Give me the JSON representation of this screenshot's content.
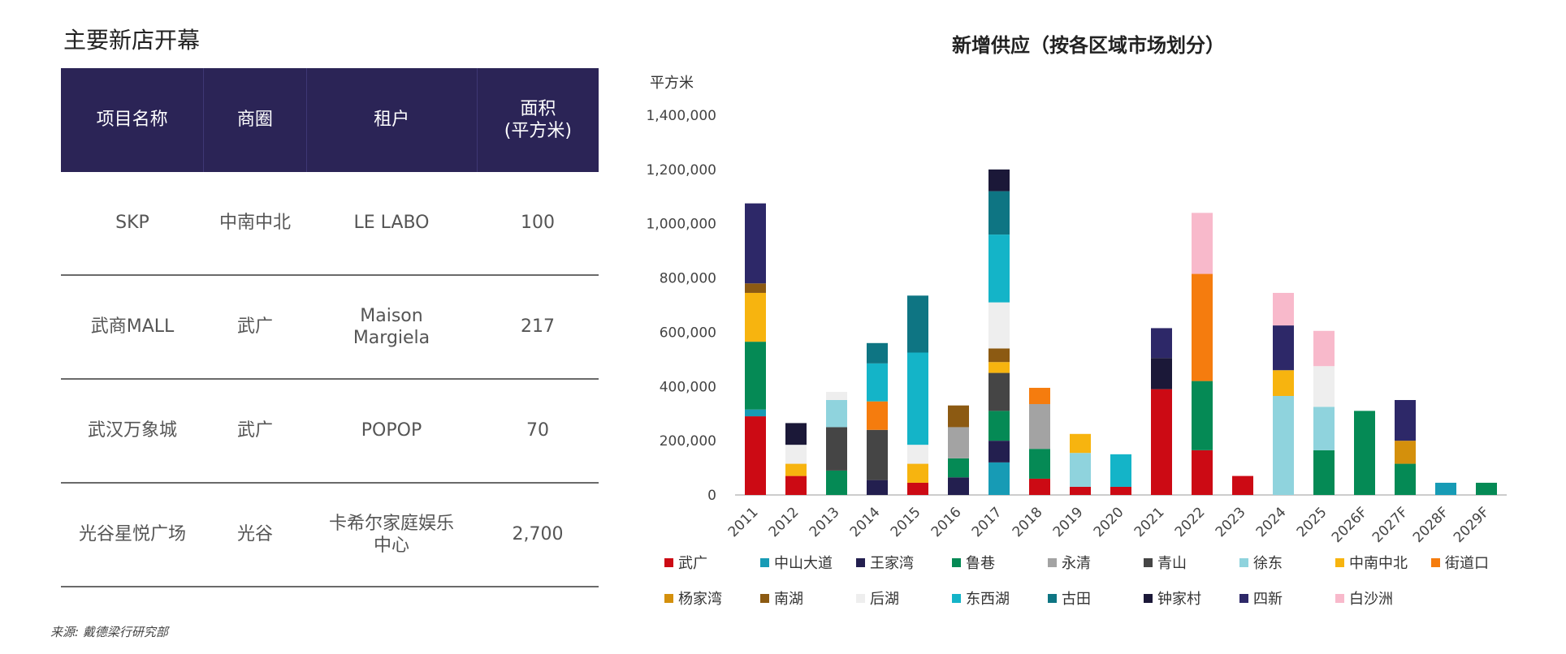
{
  "left": {
    "title": "主要新店开幕",
    "headers": [
      "项目名称",
      "商圈",
      "租户",
      "面积\n(平方米)"
    ],
    "rows": [
      [
        "SKP",
        "中南中北",
        "LE LABO",
        "100"
      ],
      [
        "武商MALL",
        "武广",
        "Maison\nMargiela",
        "217"
      ],
      [
        "武汉万象城",
        "武广",
        "POPOP",
        "70"
      ],
      [
        "光谷星悦广场",
        "光谷",
        "卡希尔家庭娱乐\n中心",
        "2,700"
      ]
    ]
  },
  "source": "来源: 戴德梁行研究部",
  "chart_data": {
    "type": "bar",
    "stacked": true,
    "title": "新增供应（按各区域市场划分）",
    "ylabel": "平方米",
    "ylim": [
      0,
      1400000
    ],
    "yticks": [
      0,
      200000,
      400000,
      600000,
      800000,
      1000000,
      1200000,
      1400000
    ],
    "ytick_labels": [
      "0",
      "200,000",
      "400,000",
      "600,000",
      "800,000",
      "1,000,000",
      "1,200,000",
      "1,400,000"
    ],
    "categories": [
      "2011",
      "2012",
      "2013",
      "2014",
      "2015",
      "2016",
      "2017",
      "2018",
      "2019",
      "2020",
      "2021",
      "2022",
      "2023",
      "2024",
      "2025",
      "2026F",
      "2027F",
      "2028F",
      "2029F"
    ],
    "series": [
      {
        "name": "武广",
        "color": "#cc0a14",
        "values": [
          290000,
          70000,
          0,
          0,
          45000,
          0,
          0,
          60000,
          30000,
          30000,
          390000,
          165000,
          70000,
          0,
          0,
          0,
          0,
          0,
          0
        ]
      },
      {
        "name": "中山大道",
        "color": "#179bb5",
        "values": [
          25000,
          0,
          0,
          0,
          0,
          0,
          120000,
          0,
          0,
          0,
          0,
          0,
          0,
          0,
          0,
          0,
          0,
          45000,
          0
        ]
      },
      {
        "name": "王家湾",
        "color": "#231f4f",
        "values": [
          0,
          0,
          0,
          55000,
          0,
          65000,
          80000,
          0,
          0,
          0,
          0,
          0,
          0,
          0,
          0,
          0,
          0,
          0,
          0
        ]
      },
      {
        "name": "鲁巷",
        "color": "#058a55",
        "values": [
          250000,
          0,
          90000,
          0,
          0,
          70000,
          110000,
          110000,
          0,
          0,
          0,
          255000,
          0,
          0,
          165000,
          310000,
          115000,
          0,
          45000
        ]
      },
      {
        "name": "永清",
        "color": "#a3a3a3",
        "values": [
          0,
          0,
          0,
          0,
          0,
          115000,
          0,
          165000,
          0,
          0,
          0,
          0,
          0,
          0,
          0,
          0,
          0,
          0,
          0
        ]
      },
      {
        "name": "青山",
        "color": "#454545",
        "values": [
          0,
          0,
          160000,
          185000,
          0,
          0,
          140000,
          0,
          0,
          0,
          0,
          0,
          0,
          0,
          0,
          0,
          0,
          0,
          0
        ]
      },
      {
        "name": "徐东",
        "color": "#8fd3dd",
        "values": [
          0,
          0,
          100000,
          0,
          0,
          0,
          0,
          0,
          125000,
          0,
          0,
          0,
          0,
          365000,
          160000,
          0,
          0,
          0,
          0
        ]
      },
      {
        "name": "中南中北",
        "color": "#f7b40f",
        "values": [
          180000,
          45000,
          0,
          0,
          70000,
          0,
          40000,
          0,
          70000,
          0,
          0,
          0,
          0,
          95000,
          0,
          0,
          0,
          0,
          0
        ]
      },
      {
        "name": "街道口",
        "color": "#f57c0e",
        "values": [
          0,
          0,
          0,
          105000,
          0,
          0,
          0,
          60000,
          0,
          0,
          0,
          395000,
          0,
          0,
          0,
          0,
          0,
          0,
          0
        ]
      },
      {
        "name": "杨家湾",
        "color": "#d4900c",
        "values": [
          0,
          0,
          0,
          0,
          0,
          0,
          0,
          0,
          0,
          0,
          0,
          0,
          0,
          0,
          0,
          0,
          85000,
          0,
          0
        ]
      },
      {
        "name": "南湖",
        "color": "#8c5a12",
        "values": [
          35000,
          0,
          0,
          0,
          0,
          80000,
          50000,
          0,
          0,
          0,
          0,
          0,
          0,
          0,
          0,
          0,
          0,
          0,
          0
        ]
      },
      {
        "name": "后湖",
        "color": "#eeeeee",
        "values": [
          0,
          70000,
          30000,
          0,
          70000,
          0,
          170000,
          0,
          0,
          0,
          0,
          0,
          0,
          0,
          150000,
          0,
          0,
          0,
          0
        ]
      },
      {
        "name": "东西湖",
        "color": "#14b4c8",
        "values": [
          0,
          0,
          0,
          140000,
          340000,
          0,
          250000,
          0,
          0,
          120000,
          0,
          0,
          0,
          0,
          0,
          0,
          0,
          0,
          0
        ]
      },
      {
        "name": "古田",
        "color": "#0e7583",
        "values": [
          0,
          0,
          0,
          75000,
          210000,
          0,
          160000,
          0,
          0,
          0,
          0,
          0,
          0,
          0,
          0,
          0,
          0,
          0,
          0
        ]
      },
      {
        "name": "钟家村",
        "color": "#1b1838",
        "values": [
          0,
          80000,
          0,
          0,
          0,
          0,
          80000,
          0,
          0,
          0,
          115000,
          0,
          0,
          0,
          0,
          0,
          0,
          0,
          0
        ]
      },
      {
        "name": "四新",
        "color": "#2d2868",
        "values": [
          295000,
          0,
          0,
          0,
          0,
          0,
          0,
          0,
          0,
          0,
          110000,
          0,
          0,
          165000,
          0,
          0,
          150000,
          0,
          0
        ]
      },
      {
        "name": "白沙洲",
        "color": "#f8b9cb",
        "values": [
          0,
          0,
          0,
          0,
          0,
          0,
          0,
          0,
          0,
          0,
          0,
          225000,
          0,
          120000,
          130000,
          0,
          0,
          0,
          0
        ]
      }
    ]
  }
}
